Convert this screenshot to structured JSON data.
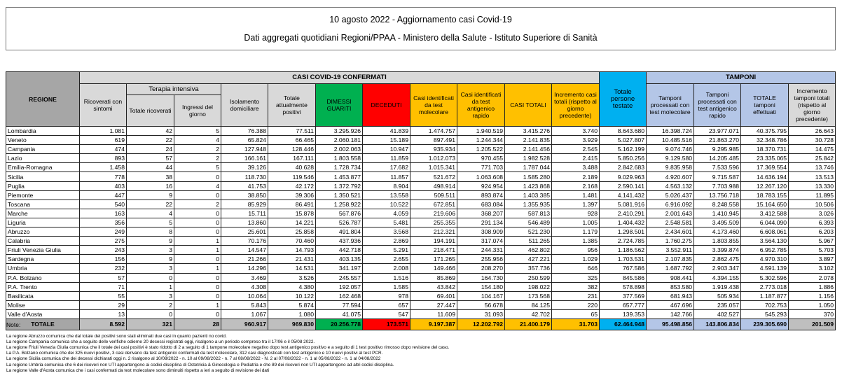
{
  "header": {
    "title": "10 agosto 2022 - Aggiornamento casi Covid-19",
    "subtitle": "Dati aggregati quotidiani Regioni/PPAA - Ministero della Salute - Istituto Superiore di Sanità"
  },
  "table": {
    "group_confermati": "CASI COVID-19 CONFERMATI",
    "group_tamponi": "TAMPONI",
    "group_terapia": "Terapia intensiva",
    "col_regione": "REGIONE",
    "columns": [
      "Ricoverati con sintomi",
      "Totale ricoverati",
      "Ingressi del giorno",
      "Isolamento domiciliare",
      "Totale attualmente positivi",
      "DIMESSI GUARITI",
      "DECEDUTI",
      "Casi identificati da test molecolare",
      "Casi identificati da test antigenico rapido",
      "CASI TOTALI",
      "Incremento casi totali (rispetto al giorno precedente)",
      "Totale persone testate",
      "Tamponi processati con test molecolare",
      "Tamponi processati con test antigenico rapido",
      "TOTALE tamponi effettuati",
      "Incremento tamponi totali (rispetto al giorno precedente)"
    ],
    "rows": [
      [
        "Lombardia",
        "1.081",
        "42",
        "5",
        "76.388",
        "77.511",
        "3.295.926",
        "41.839",
        "1.474.757",
        "1.940.519",
        "3.415.276",
        "3.740",
        "8.643.680",
        "16.398.724",
        "23.977.071",
        "40.375.795",
        "26.643"
      ],
      [
        "Veneto",
        "619",
        "22",
        "4",
        "65.824",
        "66.465",
        "2.060.181",
        "15.189",
        "897.491",
        "1.244.344",
        "2.141.835",
        "3.929",
        "5.027.807",
        "10.485.516",
        "21.863.270",
        "32.348.786",
        "30.728"
      ],
      [
        "Campania",
        "474",
        "24",
        "2",
        "127.948",
        "128.446",
        "2.002.063",
        "10.947",
        "935.934",
        "1.205.522",
        "2.141.456",
        "2.545",
        "5.162.199",
        "9.074.746",
        "9.295.985",
        "18.370.731",
        "14.475"
      ],
      [
        "Lazio",
        "893",
        "57",
        "2",
        "166.161",
        "167.111",
        "1.803.558",
        "11.859",
        "1.012.073",
        "970.455",
        "1.982.528",
        "2.415",
        "5.850.256",
        "9.129.580",
        "14.205.485",
        "23.335.065",
        "25.842"
      ],
      [
        "Emilia-Romagna",
        "1.458",
        "44",
        "5",
        "39.126",
        "40.628",
        "1.728.734",
        "17.682",
        "1.015.341",
        "771.703",
        "1.787.044",
        "3.488",
        "2.842.683",
        "9.835.958",
        "7.533.596",
        "17.369.554",
        "13.746"
      ],
      [
        "Sicilia",
        "778",
        "38",
        "0",
        "118.730",
        "119.546",
        "1.453.877",
        "11.857",
        "521.672",
        "1.063.608",
        "1.585.280",
        "2.189",
        "9.029.963",
        "4.920.607",
        "9.715.587",
        "14.636.194",
        "13.513"
      ],
      [
        "Puglia",
        "403",
        "16",
        "4",
        "41.753",
        "42.172",
        "1.372.792",
        "8.904",
        "498.914",
        "924.954",
        "1.423.868",
        "2.168",
        "2.590.141",
        "4.563.132",
        "7.703.988",
        "12.267.120",
        "13.330"
      ],
      [
        "Piemonte",
        "447",
        "9",
        "0",
        "38.850",
        "39.306",
        "1.350.521",
        "13.558",
        "509.511",
        "893.874",
        "1.403.385",
        "1.481",
        "4.141.432",
        "5.026.437",
        "13.756.718",
        "18.783.155",
        "11.895"
      ],
      [
        "Toscana",
        "540",
        "22",
        "2",
        "85.929",
        "86.491",
        "1.258.922",
        "10.522",
        "672.851",
        "683.084",
        "1.355.935",
        "1.397",
        "5.081.916",
        "6.916.092",
        "8.248.558",
        "15.164.650",
        "10.506"
      ],
      [
        "Marche",
        "163",
        "4",
        "0",
        "15.711",
        "15.878",
        "567.876",
        "4.059",
        "219.606",
        "368.207",
        "587.813",
        "928",
        "2.410.291",
        "2.001.643",
        "1.410.945",
        "3.412.588",
        "3.026"
      ],
      [
        "Liguria",
        "356",
        "5",
        "0",
        "13.860",
        "14.221",
        "526.787",
        "5.481",
        "255.355",
        "291.134",
        "546.489",
        "1.005",
        "1.404.432",
        "2.548.581",
        "3.495.509",
        "6.044.090",
        "6.393"
      ],
      [
        "Abruzzo",
        "249",
        "8",
        "0",
        "25.601",
        "25.858",
        "491.804",
        "3.568",
        "212.321",
        "308.909",
        "521.230",
        "1.179",
        "1.298.501",
        "2.434.601",
        "4.173.460",
        "6.608.061",
        "6.203"
      ],
      [
        "Calabria",
        "275",
        "9",
        "1",
        "70.176",
        "70.460",
        "437.936",
        "2.869",
        "194.191",
        "317.074",
        "511.265",
        "1.385",
        "2.724.785",
        "1.760.275",
        "1.803.855",
        "3.564.130",
        "5.967"
      ],
      [
        "Friuli Venezia Giulia",
        "243",
        "3",
        "1",
        "14.547",
        "14.793",
        "442.718",
        "5.291",
        "218.471",
        "244.331",
        "462.802",
        "956",
        "1.186.562",
        "3.552.911",
        "3.399.874",
        "6.952.785",
        "5.703"
      ],
      [
        "Sardegna",
        "156",
        "9",
        "0",
        "21.266",
        "21.431",
        "403.135",
        "2.655",
        "171.265",
        "255.956",
        "427.221",
        "1.029",
        "1.703.531",
        "2.107.835",
        "2.862.475",
        "4.970.310",
        "3.897"
      ],
      [
        "Umbria",
        "232",
        "3",
        "1",
        "14.296",
        "14.531",
        "341.197",
        "2.008",
        "149.466",
        "208.270",
        "357.736",
        "646",
        "767.586",
        "1.687.792",
        "2.903.347",
        "4.591.139",
        "3.102"
      ],
      [
        "P.A. Bolzano",
        "57",
        "0",
        "0",
        "3.469",
        "3.526",
        "245.557",
        "1.516",
        "85.869",
        "164.730",
        "250.599",
        "325",
        "845.586",
        "908.441",
        "4.394.155",
        "5.302.596",
        "2.078"
      ],
      [
        "P.A. Trento",
        "71",
        "1",
        "0",
        "4.308",
        "4.380",
        "192.057",
        "1.585",
        "43.842",
        "154.180",
        "198.022",
        "382",
        "578.898",
        "853.580",
        "1.919.438",
        "2.773.018",
        "1.886"
      ],
      [
        "Basilicata",
        "55",
        "3",
        "0",
        "10.064",
        "10.122",
        "162.468",
        "978",
        "69.401",
        "104.167",
        "173.568",
        "231",
        "377.569",
        "681.943",
        "505.934",
        "1.187.877",
        "1.156"
      ],
      [
        "Molise",
        "29",
        "2",
        "1",
        "5.843",
        "5.874",
        "77.594",
        "657",
        "27.447",
        "56.678",
        "84.125",
        "220",
        "657.777",
        "467.696",
        "235.057",
        "702.753",
        "1.050"
      ],
      [
        "Valle d'Aosta",
        "13",
        "0",
        "0",
        "1.067",
        "1.080",
        "41.075",
        "547",
        "11.609",
        "31.093",
        "42.702",
        "65",
        "139.353",
        "142.766",
        "402.527",
        "545.293",
        "370"
      ]
    ],
    "total": [
      "TOTALE",
      "8.592",
      "321",
      "28",
      "960.917",
      "969.830",
      "20.256.778",
      "173.571",
      "9.197.387",
      "12.202.792",
      "21.400.179",
      "31.703",
      "62.464.948",
      "95.498.856",
      "143.806.834",
      "239.305.690",
      "201.509"
    ]
  },
  "colors": {
    "dimessi": "#00b050",
    "deceduti": "#ff0000",
    "casi": "#ffc000",
    "persone_testate": "#00b0f0",
    "tamponi": "#b4c6e7"
  },
  "notes": {
    "title": "Note:",
    "items": [
      "La regione Abruzzo comunica che dal totale dei positivi sono stati eliminati due casi in quanto pazienti no covid.",
      "La regione Campania comunica che a seguito delle verifiche odierne 20 decessi registrati oggi, risalgono a un periodo compreso tra il 17/06 e il 05/08 2022.",
      "La regione Friuli Venezia Giulia comunica che il totale dei casi positivi è stato ridotto di 2 a seguito di 1 tampone molecolare negativo dopo test antigenico positivo e a seguito di 1 test positivo rimosso dopo revisione del caso.",
      "La P.A. Bolzano comunica che dei 325 nuovi positivi, 3 casi derivano da test antigenici confermati da test molecolare, 312 casi diagnosticati con test antigenico e 10 nuovi positivi al test PCR.",
      "La regione Sicilia comunica che dei decessi dichiarati oggi n. 2 risalgono al 10/08/2022 - n. 10 al 09/08/2022 - n. 7 al 08/08/2022 - N. 2 al 07/08/2022 - n. 1 al 05/08/2022 - n. 1 al 04/08/2022",
      "La regione Umbria comunica che 6 dei ricoveri non UTI appartengono ai codici disciplina di Ostetricia & Ginecologia e Pediatria e che 89 dei ricoveri non UTI appartengono ad altri codici disciplina.",
      "La regione Valle d'Aosta  comunica che i casi confermati da test molecolare sono diminuiti rispetto a ieri a seguito di revisione dei dati"
    ]
  }
}
